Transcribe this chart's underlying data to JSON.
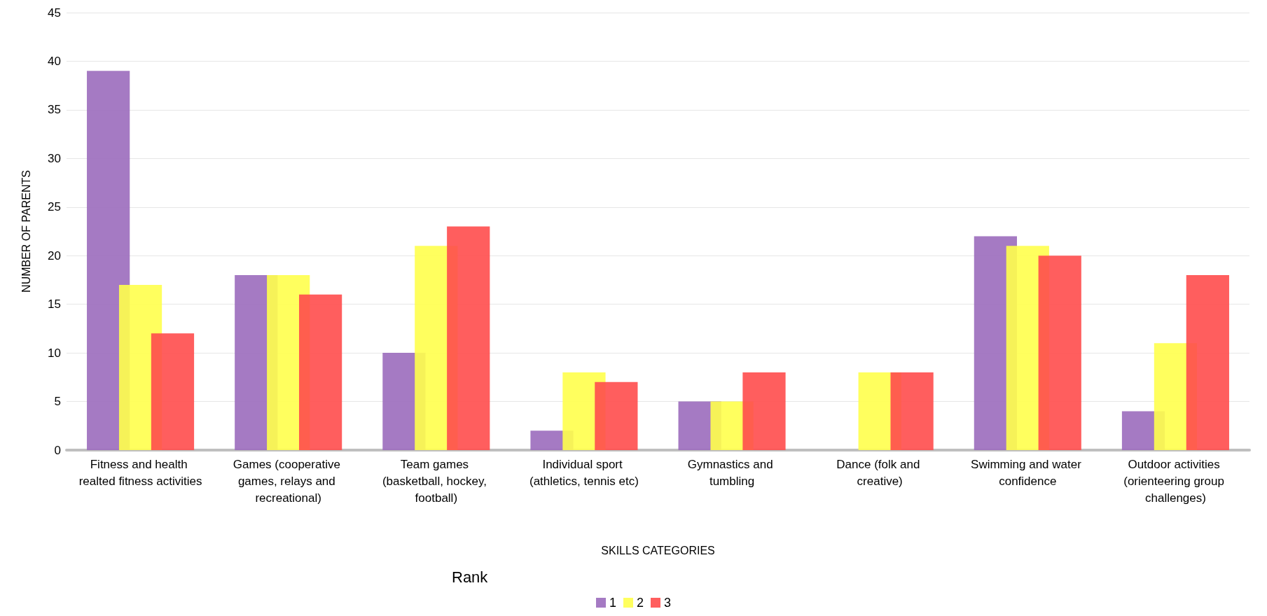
{
  "chart_data": {
    "type": "bar",
    "xlabel": "SKILLS CATEGORIES",
    "ylabel": "NUMBER OF PARENTS",
    "legend_title": "Rank",
    "categories": [
      "Fitness and health realted fitness activities",
      "Games (cooperative games, relays and recreational)",
      "Team games (basketball, hockey, football)",
      "Individual sport (athletics, tennis etc)",
      "Gymnastics and tumbling",
      "Dance (folk and creative)",
      "Swimming and water confidence",
      "Outdoor activities (orienteering group challenges)"
    ],
    "series": [
      {
        "name": "1",
        "color": "#9b6bbd",
        "values": [
          39,
          18,
          10,
          2,
          5,
          0,
          22,
          4
        ]
      },
      {
        "name": "2",
        "color": "#ffff4d",
        "values": [
          17,
          18,
          21,
          8,
          5,
          8,
          21,
          11
        ]
      },
      {
        "name": "3",
        "color": "#ff4d4d",
        "values": [
          12,
          16,
          23,
          7,
          8,
          8,
          20,
          18
        ]
      }
    ],
    "ylim": [
      0,
      45
    ],
    "yticks": [
      0,
      5,
      10,
      15,
      20,
      25,
      30,
      35,
      40,
      45
    ],
    "grid": "y",
    "legend": "bottom"
  }
}
